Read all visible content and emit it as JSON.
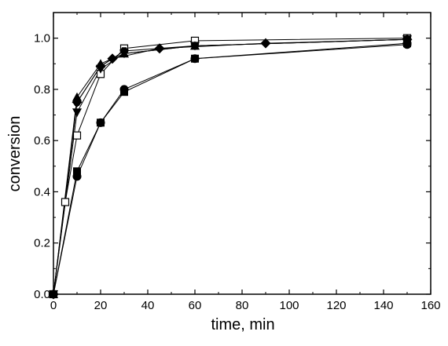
{
  "chart_data": {
    "type": "line",
    "xlabel": "time, min",
    "ylabel": "conversion",
    "xlim": [
      0,
      160
    ],
    "ylim": [
      0.0,
      1.1
    ],
    "xticks": [
      "0",
      "20",
      "40",
      "60",
      "80",
      "100",
      "120",
      "140",
      "160"
    ],
    "yticks": [
      "0.0",
      "0.2",
      "0.4",
      "0.6",
      "0.8",
      "1.0"
    ],
    "grid": false,
    "legend": "none",
    "series": [
      {
        "marker": "filled-circle",
        "x": [
          0,
          10,
          20,
          30,
          60,
          150
        ],
        "y": [
          0.0,
          0.46,
          0.67,
          0.8,
          0.92,
          0.975
        ]
      },
      {
        "marker": "filled-square",
        "x": [
          0,
          10,
          20,
          30,
          60,
          150
        ],
        "y": [
          0.0,
          0.48,
          0.67,
          0.79,
          0.92,
          0.98
        ]
      },
      {
        "marker": "open-square",
        "x": [
          0,
          5,
          10,
          20,
          30,
          60,
          150
        ],
        "y": [
          0.0,
          0.36,
          0.62,
          0.86,
          0.96,
          0.99,
          1.0
        ]
      },
      {
        "marker": "filled-triangle-down",
        "x": [
          0,
          10,
          20,
          30,
          60,
          150
        ],
        "y": [
          0.0,
          0.71,
          0.88,
          0.94,
          0.97,
          0.995
        ]
      },
      {
        "marker": "filled-triangle-up",
        "x": [
          0,
          10,
          20,
          30,
          60,
          150
        ],
        "y": [
          0.0,
          0.77,
          0.9,
          0.94,
          0.97,
          0.995
        ]
      },
      {
        "marker": "filled-diamond",
        "x": [
          0,
          10,
          20,
          25,
          45,
          90,
          150
        ],
        "y": [
          0.0,
          0.75,
          0.89,
          0.92,
          0.96,
          0.98,
          0.995
        ]
      },
      {
        "marker": "filled-hexagon",
        "x": [
          0,
          10,
          20,
          30,
          60,
          150
        ],
        "y": [
          0.0,
          0.75,
          0.89,
          0.95,
          0.97,
          0.995
        ]
      }
    ]
  }
}
